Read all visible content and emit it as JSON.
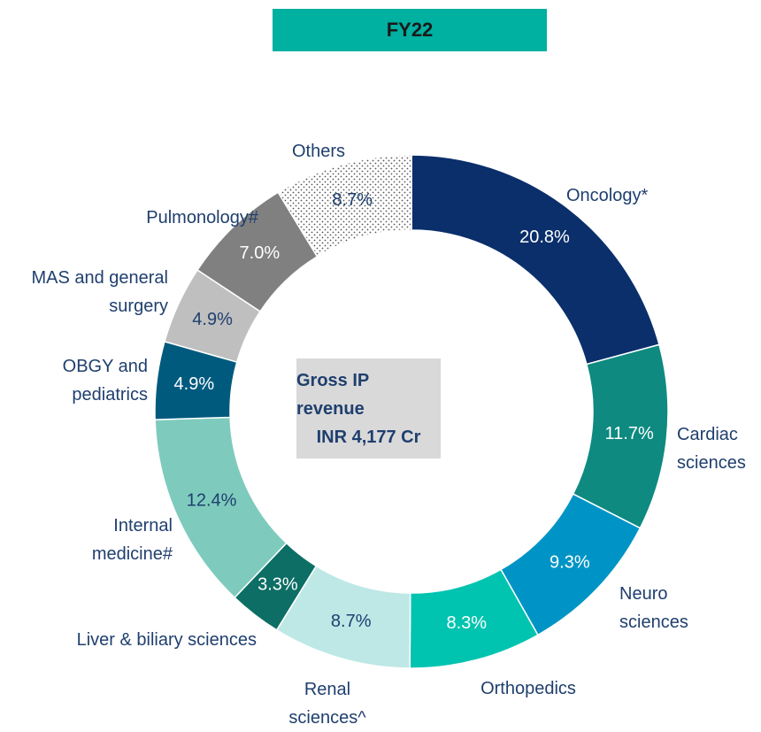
{
  "chart_data": {
    "type": "donut",
    "title": "FY22",
    "center_text": [
      "Gross IP revenue",
      "INR 4,177 Cr"
    ],
    "categories": [
      "Oncology*",
      "Cardiac sciences",
      "Neuro sciences",
      "Orthopedics",
      "Renal sciences^",
      "Liver & biliary sciences",
      "Internal medicine#",
      "OBGY and pediatrics",
      "MAS and general surgery",
      "Pulmonology#",
      "Others"
    ],
    "values": [
      20.8,
      11.7,
      9.3,
      8.3,
      8.7,
      3.3,
      12.4,
      4.9,
      4.9,
      7.0,
      8.7
    ],
    "value_labels": [
      "20.8%",
      "11.7%",
      "9.3%",
      "8.3%",
      "8.7%",
      "3.3%",
      "12.4%",
      "4.9%",
      "4.9%",
      "7.0%",
      "8.7%"
    ],
    "colors": [
      "#0a2f6b",
      "#0e8a80",
      "#0094c6",
      "#00c4b0",
      "#bde8e6",
      "#0c6e64",
      "#7ecbbd",
      "#005a7e",
      "#bfbfbf",
      "#808080",
      "dotted"
    ]
  }
}
